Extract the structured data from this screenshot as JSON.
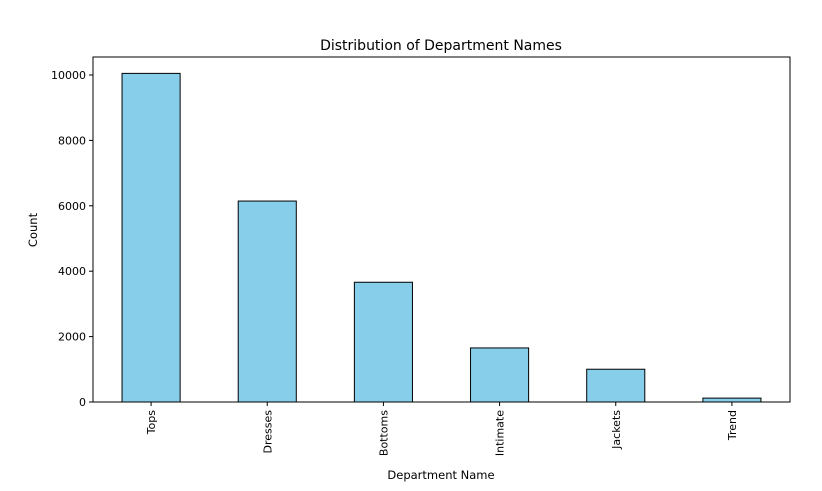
{
  "chart_data": {
    "type": "bar",
    "title": "Distribution of Department Names",
    "xlabel": "Department Name",
    "ylabel": "Count",
    "categories": [
      "Tops",
      "Dresses",
      "Bottoms",
      "Intimate",
      "Jackets",
      "Trend"
    ],
    "values": [
      10049,
      6145,
      3662,
      1653,
      1002,
      119
    ],
    "ylim": [
      0,
      10550
    ],
    "yticks": [
      0,
      2000,
      4000,
      6000,
      8000,
      10000
    ],
    "grid": false,
    "legend": "none",
    "bar_color": "#87ceeb",
    "edge_color": "#000000"
  }
}
